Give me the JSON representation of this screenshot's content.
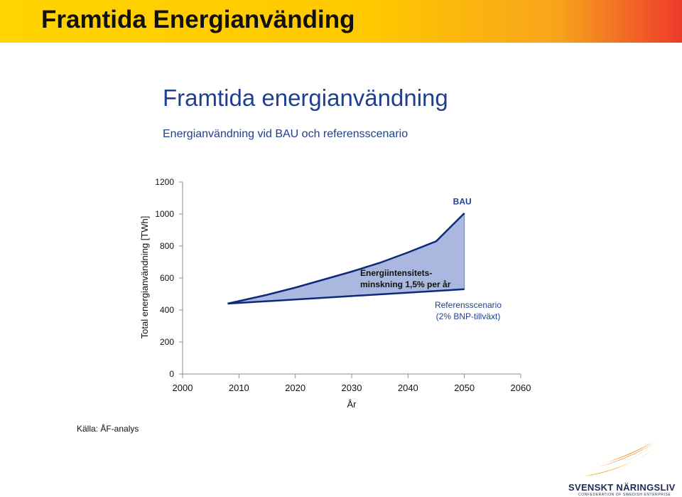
{
  "header": {
    "title": "Framtida Energianvänding"
  },
  "chart_data": {
    "type": "area",
    "title": "Framtida energianvändning",
    "subtitle": "Energianvändning vid BAU och referensscenario",
    "xlabel": "År",
    "ylabel": "Total energianvändning [TWh]",
    "xlim": [
      2000,
      2060
    ],
    "ylim": [
      0,
      1200
    ],
    "x_ticks": [
      2000,
      2010,
      2020,
      2030,
      2040,
      2050,
      2060
    ],
    "y_ticks": [
      0,
      200,
      400,
      600,
      800,
      1000,
      1200
    ],
    "grid": false,
    "fill_color": "#aab8df",
    "line_color": "#0d2a7a",
    "series": [
      {
        "name": "BAU",
        "x": [
          2008,
          2015,
          2020,
          2025,
          2030,
          2035,
          2040,
          2045,
          2050
        ],
        "y": [
          440,
          495,
          540,
          590,
          640,
          695,
          760,
          830,
          1005
        ]
      },
      {
        "name": "Referensscenario",
        "x": [
          2008,
          2050
        ],
        "y": [
          440,
          530
        ]
      }
    ],
    "annotations": {
      "bau_label": "BAU",
      "intensity_line1": "Energiintensitets-",
      "intensity_line2": "minskning 1,5% per år",
      "ref_line1": "Referensscenario",
      "ref_line2": "(2% BNP-tillväxt)"
    }
  },
  "source": {
    "text": "Källa: ÅF-analys"
  },
  "logo": {
    "name": "SVENSKT NÄRINGSLIV",
    "tagline": "CONFEDERATION OF SWEDISH ENTERPRISE"
  }
}
